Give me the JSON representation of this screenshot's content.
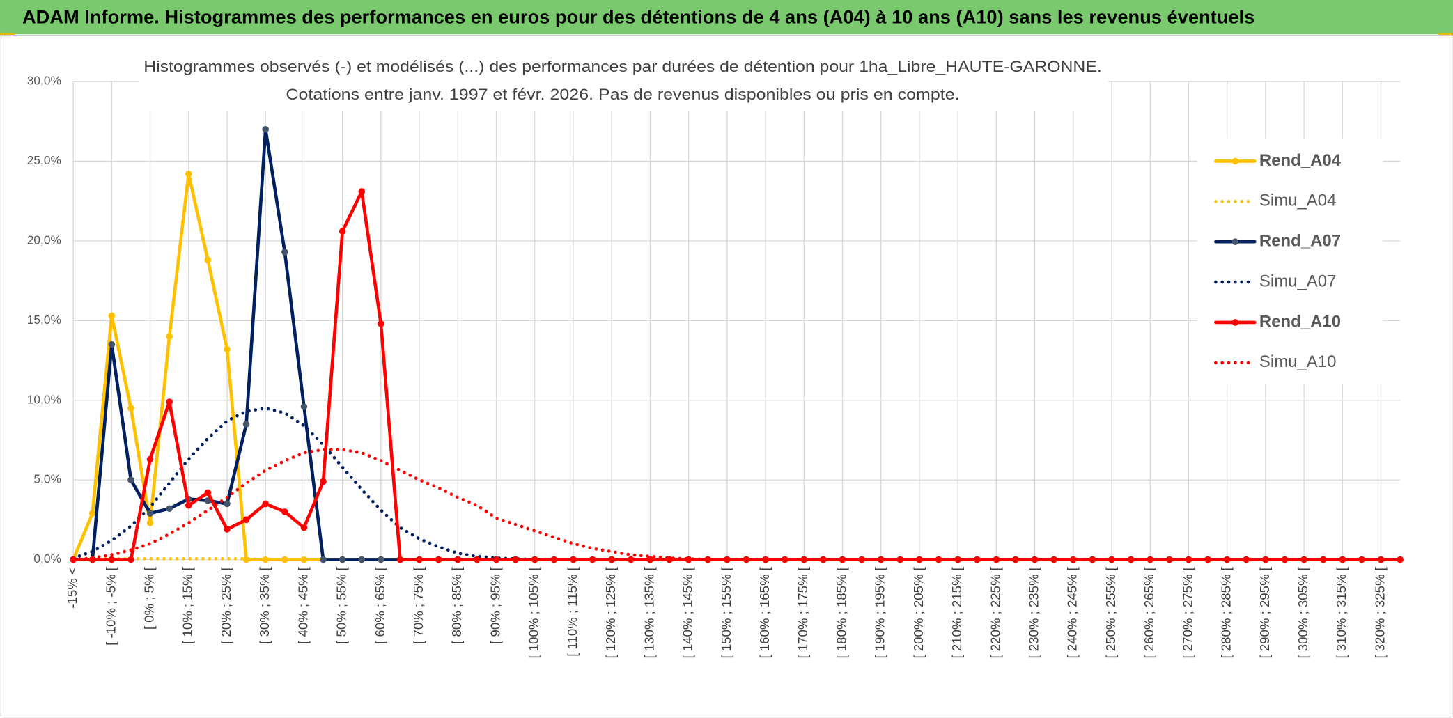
{
  "header": {
    "title": "ADAM Informe. Histogrammes des performances en euros pour des détentions de 4 ans (A04) à 10 ans (A10) sans les revenus éventuels"
  },
  "chart_data": {
    "type": "line",
    "title": "Histogrammes observés (-) et modélisés (...) des performances par durées de détention pour 1ha_Libre_HAUTE-GARONNE.",
    "subtitle": "Cotations entre janv. 1997 et févr. 2026. Pas de revenus disponibles ou pris en compte.",
    "categories": [
      "-15% <",
      null,
      "[ -10% ; -5% [",
      null,
      "[ 0% ; 5% [",
      null,
      "[ 10% ; 15% [",
      null,
      "[ 20% ; 25% [",
      null,
      "[ 30% ; 35% [",
      null,
      "[ 40% ; 45% [",
      null,
      "[ 50% ; 55% [",
      null,
      "[ 60% ; 65% [",
      null,
      "[ 70% ; 75% [",
      null,
      "[ 80% ; 85% [",
      null,
      "[ 90% ; 95% [",
      null,
      "[ 100% ; 105% [",
      null,
      "[ 110% ; 115% [",
      null,
      "[ 120% ; 125% [",
      null,
      "[ 130% ; 135% [",
      null,
      "[ 140% ; 145% [",
      null,
      "[ 150% ; 155% [",
      null,
      "[ 160% ; 165% [",
      null,
      "[ 170% ; 175% [",
      null,
      "[ 180% ; 185% [",
      null,
      "[ 190% ; 195% [",
      null,
      "[ 200% ; 205% [",
      null,
      "[ 210% ; 215% [",
      null,
      "[ 220% ; 225% [",
      null,
      "[ 230% ; 235% [",
      null,
      "[ 240% ; 245% [",
      null,
      "[ 250% ; 255% [",
      null,
      "[ 260% ; 265% [",
      null,
      "[ 270% ; 275% [",
      null,
      "[ 280% ; 285% [",
      null,
      "[ 290% ; 295% [",
      null,
      "[ 300% ; 305% [",
      null,
      "[ 310% ; 315% [",
      null,
      "[ 320% ; 325% [",
      null
    ],
    "series": [
      {
        "name": "Rend_A04",
        "color": "#FFC000",
        "marker_color": "#FFC000",
        "style": "solid",
        "values": [
          0,
          2.9,
          15.3,
          9.5,
          2.3,
          14,
          24.2,
          18.8,
          13.2,
          0,
          0,
          0,
          0,
          0,
          0,
          0,
          0,
          0,
          0,
          0,
          0,
          0,
          0,
          0,
          0,
          0,
          0,
          0,
          0,
          0,
          0,
          0,
          0,
          0,
          0,
          0,
          0,
          0,
          0,
          0,
          0,
          0,
          0,
          0,
          0,
          0,
          0,
          0,
          0,
          0,
          0,
          0,
          0,
          0,
          0,
          0,
          0,
          0,
          0,
          0,
          0,
          0,
          0,
          0,
          0,
          0,
          0,
          0,
          0,
          0
        ]
      },
      {
        "name": "Simu_A04",
        "color": "#FFC000",
        "style": "dotted",
        "values": [
          0,
          0.05,
          0.05,
          0.05,
          0.05,
          0.05,
          0.05,
          0.05,
          0.05,
          0.05,
          0,
          0,
          0,
          0,
          0,
          0,
          0,
          0,
          0,
          0,
          0,
          0,
          0,
          0,
          0,
          0,
          0,
          0,
          0,
          0,
          0,
          0,
          0,
          0,
          0,
          0,
          0,
          0,
          0,
          0,
          0,
          0,
          0,
          0,
          0,
          0,
          0,
          0,
          0,
          0,
          0,
          0,
          0,
          0,
          0,
          0,
          0,
          0,
          0,
          0,
          0,
          0,
          0,
          0,
          0,
          0,
          0,
          0,
          0,
          0
        ]
      },
      {
        "name": "Rend_A07",
        "color": "#002060",
        "marker_color": "#44546A",
        "style": "solid",
        "values": [
          0,
          0,
          13.5,
          5.0,
          2.9,
          3.2,
          3.8,
          3.7,
          3.5,
          8.5,
          27,
          19.3,
          9.6,
          0,
          0,
          0,
          0,
          0,
          0,
          0,
          0,
          0,
          0,
          0,
          0,
          0,
          0,
          0,
          0,
          0,
          0,
          0,
          0,
          0,
          0,
          0,
          0,
          0,
          0,
          0,
          0,
          0,
          0,
          0,
          0,
          0,
          0,
          0,
          0,
          0,
          0,
          0,
          0,
          0,
          0,
          0,
          0,
          0,
          0,
          0,
          0,
          0,
          0,
          0,
          0,
          0,
          0,
          0,
          0,
          0
        ]
      },
      {
        "name": "Simu_A07",
        "color": "#002060",
        "style": "dotted",
        "values": [
          0.1,
          0.5,
          1.2,
          2.1,
          3.3,
          4.8,
          6.3,
          7.6,
          8.7,
          9.3,
          9.5,
          9.2,
          8.4,
          7.2,
          5.8,
          4.4,
          3.1,
          2.0,
          1.3,
          0.8,
          0.4,
          0.2,
          0.1,
          0.05,
          0,
          0,
          0,
          0,
          0,
          0,
          0,
          0,
          0,
          0,
          0,
          0,
          0,
          0,
          0,
          0,
          0,
          0,
          0,
          0,
          0,
          0,
          0,
          0,
          0,
          0,
          0,
          0,
          0,
          0,
          0,
          0,
          0,
          0,
          0,
          0,
          0,
          0,
          0,
          0,
          0,
          0,
          0,
          0,
          0,
          0
        ]
      },
      {
        "name": "Rend_A10",
        "color": "#FF0000",
        "marker_color": "#FF0000",
        "style": "solid",
        "values": [
          0,
          0,
          0,
          0,
          6.3,
          9.9,
          3.4,
          4.2,
          1.9,
          2.5,
          3.5,
          3.0,
          2.0,
          4.9,
          20.6,
          23.1,
          14.8,
          0,
          0,
          0,
          0,
          0,
          0,
          0,
          0,
          0,
          0,
          0,
          0,
          0,
          0,
          0,
          0,
          0,
          0,
          0,
          0,
          0,
          0,
          0,
          0,
          0,
          0,
          0,
          0,
          0,
          0,
          0,
          0,
          0,
          0,
          0,
          0,
          0,
          0,
          0,
          0,
          0,
          0,
          0,
          0,
          0,
          0,
          0,
          0,
          0,
          0,
          0,
          0,
          0
        ]
      },
      {
        "name": "Simu_A10",
        "color": "#FF0000",
        "style": "dotted",
        "values": [
          0,
          0.1,
          0.3,
          0.6,
          1.0,
          1.6,
          2.3,
          3.1,
          3.9,
          4.8,
          5.6,
          6.2,
          6.7,
          6.9,
          6.9,
          6.7,
          6.2,
          5.6,
          5.0,
          4.5,
          3.9,
          3.4,
          2.6,
          2.2,
          1.8,
          1.4,
          1.0,
          0.7,
          0.5,
          0.3,
          0.2,
          0.1,
          0.05,
          0,
          0,
          0,
          0,
          0,
          0,
          0,
          0,
          0,
          0,
          0,
          0,
          0,
          0,
          0,
          0,
          0,
          0,
          0,
          0,
          0,
          0,
          0,
          0,
          0,
          0,
          0,
          0,
          0,
          0,
          0,
          0,
          0,
          0,
          0,
          0,
          0
        ]
      }
    ],
    "ylim": [
      0,
      30
    ],
    "yticks": [
      {
        "value": 0,
        "label": "0,0%"
      },
      {
        "value": 5,
        "label": "5,0%"
      },
      {
        "value": 10,
        "label": "10,0%"
      },
      {
        "value": 15,
        "label": "15,0%"
      },
      {
        "value": 20,
        "label": "20,0%"
      },
      {
        "value": 25,
        "label": "25,0%"
      },
      {
        "value": 30,
        "label": "30,0%"
      }
    ],
    "grid": true,
    "legend": "right"
  }
}
